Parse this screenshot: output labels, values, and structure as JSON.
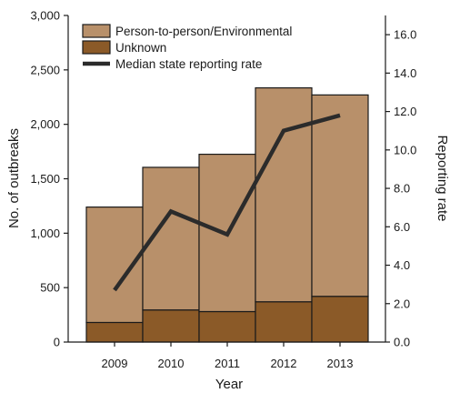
{
  "chart_data": {
    "type": "bar",
    "subtype": "stacked bar with line overlay",
    "categories": [
      "2009",
      "2010",
      "2011",
      "2012",
      "2013"
    ],
    "series": [
      {
        "name": "Unknown",
        "type": "bar",
        "axis": "left",
        "color": "#8b5a28",
        "values": [
          180,
          295,
          280,
          370,
          420
        ]
      },
      {
        "name": "Person-to-person/Environmental",
        "type": "bar",
        "axis": "left",
        "color": "#b8906a",
        "values": [
          1060,
          1310,
          1445,
          1965,
          1850
        ]
      },
      {
        "name": "Median state reporting rate",
        "type": "line",
        "axis": "right",
        "color": "#2b2b2b",
        "values": [
          2.7,
          6.8,
          5.6,
          11.0,
          11.8
        ]
      }
    ],
    "xlabel": "Year",
    "ylabel": "No. of outbreaks",
    "y2label": "Reporting rate",
    "ylim": [
      0,
      3000
    ],
    "yticks": [
      "0",
      "500",
      "1,000",
      "1,500",
      "2,000",
      "2,500",
      "3,000"
    ],
    "y2lim": [
      0,
      17
    ],
    "y2ticks": [
      "0.0",
      "2.0",
      "4.0",
      "6.0",
      "8.0",
      "10.0",
      "12.0",
      "14.0",
      "16.0"
    ],
    "grid": false,
    "legend_position": "top-left"
  }
}
